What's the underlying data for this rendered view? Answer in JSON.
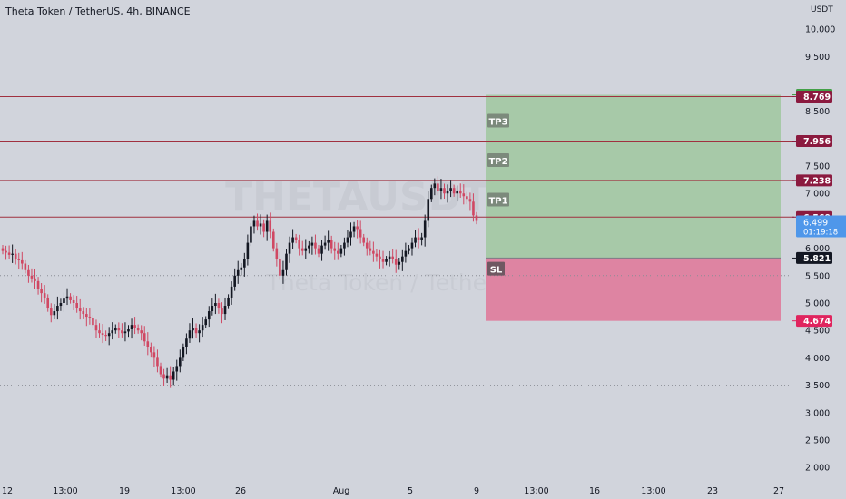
{
  "header": {
    "title": "Theta Token / TetherUS, 4h, BINANCE"
  },
  "currency": "USDT",
  "watermark": {
    "symbol": "THETAUSDT, 4h",
    "name": "Theta Token / TetherUS"
  },
  "colors": {
    "background": "#d1d4dc",
    "up": "#131722",
    "down": "#d04863",
    "level_line": "#a0303f",
    "level_tag": "#8b1a3f",
    "target_zone": "#a7c9a8",
    "stop_zone": "#de84a2",
    "tp_label_bg": "#7c8a7c",
    "sl_label_bg": "#6f5862",
    "current_price_bg": "#4f97ea",
    "target_tag": "#43a047",
    "stop_tag": "#e0245e",
    "entry_tag": "#131722"
  },
  "chart_data": {
    "type": "candlestick",
    "y_axis": {
      "ticks": [
        "10.000",
        "9.500",
        "8.500",
        "7.500",
        "7.000",
        "6.000",
        "5.500",
        "5.000",
        "4.500",
        "4.000",
        "3.500",
        "3.000",
        "2.500",
        "2.000"
      ],
      "range": [
        1.82,
        10.3
      ]
    },
    "x_axis": {
      "ticks": [
        "12",
        "13:00",
        "19",
        "13:00",
        "26",
        "Aug",
        "5",
        "9",
        "13:00",
        "16",
        "13:00",
        "23",
        "27"
      ]
    },
    "levels": [
      {
        "value": 8.769,
        "label": "8.769"
      },
      {
        "value": 7.956,
        "label": "7.956"
      },
      {
        "value": 7.238,
        "label": "7.238"
      },
      {
        "value": 6.569,
        "label": "6.569"
      }
    ],
    "dotted_levels": [
      5.5,
      3.5
    ],
    "position": {
      "target": {
        "value": 8.801,
        "label": "8.801"
      },
      "entry": {
        "value": 5.821,
        "label": "5.821"
      },
      "stop": {
        "value": 4.674,
        "label": "4.674"
      },
      "labels": [
        {
          "text": "TP3",
          "value": 8.32
        },
        {
          "text": "TP2",
          "value": 7.6
        },
        {
          "text": "TP1",
          "value": 6.88
        },
        {
          "text": "SL",
          "value": 5.62
        }
      ]
    },
    "current_price": {
      "value": 6.499,
      "label": "6.499",
      "countdown": "01:19:18"
    },
    "candles_close": [
      5.95,
      5.92,
      5.88,
      5.9,
      5.8,
      5.78,
      5.72,
      5.6,
      5.5,
      5.45,
      5.4,
      5.25,
      5.18,
      5.1,
      4.9,
      4.78,
      4.85,
      4.95,
      5.0,
      5.08,
      5.12,
      5.05,
      5.0,
      4.9,
      4.85,
      4.8,
      4.75,
      4.72,
      4.6,
      4.5,
      4.45,
      4.42,
      4.4,
      4.45,
      4.5,
      4.55,
      4.5,
      4.45,
      4.48,
      4.52,
      4.6,
      4.55,
      4.5,
      4.45,
      4.3,
      4.2,
      4.1,
      4.0,
      3.85,
      3.7,
      3.62,
      3.68,
      3.6,
      3.75,
      3.85,
      4.0,
      4.2,
      4.35,
      4.5,
      4.55,
      4.45,
      4.5,
      4.6,
      4.7,
      4.85,
      4.95,
      5.0,
      4.9,
      4.8,
      4.95,
      5.1,
      5.3,
      5.5,
      5.6,
      5.65,
      5.8,
      6.1,
      6.4,
      6.5,
      6.4,
      6.45,
      6.3,
      6.5,
      6.3,
      6.0,
      5.8,
      5.5,
      5.6,
      5.9,
      6.1,
      6.2,
      6.15,
      6.0,
      5.95,
      6.0,
      6.05,
      6.1,
      6.0,
      5.9,
      6.05,
      6.1,
      6.15,
      6.0,
      5.95,
      5.9,
      6.0,
      6.1,
      6.2,
      6.3,
      6.4,
      6.35,
      6.2,
      6.1,
      6.0,
      5.95,
      5.9,
      5.85,
      5.8,
      5.75,
      5.8,
      5.85,
      5.8,
      5.7,
      5.75,
      5.85,
      5.95,
      6.0,
      6.1,
      6.2,
      6.15,
      6.2,
      6.5,
      6.9,
      7.1,
      7.18,
      7.05,
      7.1,
      7.0,
      7.05,
      7.1,
      7.0,
      7.05,
      7.0,
      6.95,
      6.9,
      6.85,
      6.6,
      6.499
    ]
  }
}
